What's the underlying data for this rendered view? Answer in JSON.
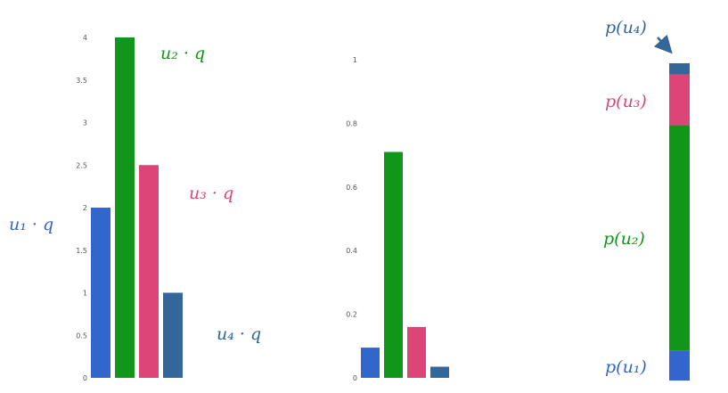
{
  "colors": {
    "u1": "#3366cc",
    "u2": "#109618",
    "u3": "#dd4477",
    "u4": "#336699",
    "tick": "#555555",
    "arrow": "#336699"
  },
  "chart_data": [
    {
      "type": "bar",
      "categories": [
        "u1",
        "u2",
        "u3",
        "u4"
      ],
      "values": [
        2,
        4,
        2.5,
        1
      ],
      "ylim": [
        0,
        4
      ],
      "yticks": [
        "0",
        "0.5",
        "1",
        "1.5",
        "2",
        "2.5",
        "3",
        "3.5",
        "4"
      ],
      "grid": false,
      "annotations": [
        {
          "text": "u₁ · q",
          "color": "#3366cc"
        },
        {
          "text": "u₂ · q",
          "color": "#109618"
        },
        {
          "text": "u₃ · q",
          "color": "#dd4477"
        },
        {
          "text": "u₄ · q",
          "color": "#336699"
        }
      ]
    },
    {
      "type": "bar",
      "categories": [
        "u1",
        "u2",
        "u3",
        "u4"
      ],
      "values": [
        0.095,
        0.71,
        0.16,
        0.035
      ],
      "ylim": [
        0,
        1
      ],
      "yticks": [
        "0",
        "0.2",
        "0.4",
        "0.6",
        "0.8",
        "1"
      ],
      "grid": false
    },
    {
      "type": "bar",
      "stacked": true,
      "segments": [
        {
          "name": "u1",
          "value": 0.095,
          "color": "#3366cc"
        },
        {
          "name": "u2",
          "value": 0.71,
          "color": "#109618"
        },
        {
          "name": "u3",
          "value": 0.16,
          "color": "#dd4477"
        },
        {
          "name": "u4",
          "value": 0.035,
          "color": "#336699"
        }
      ],
      "annotations": [
        {
          "text": "p(u₄)",
          "color": "#336699"
        },
        {
          "text": "p(u₃)",
          "color": "#dd4477"
        },
        {
          "text": "p(u₂)",
          "color": "#109618"
        },
        {
          "text": "p(u₁)",
          "color": "#3366cc"
        }
      ]
    }
  ]
}
